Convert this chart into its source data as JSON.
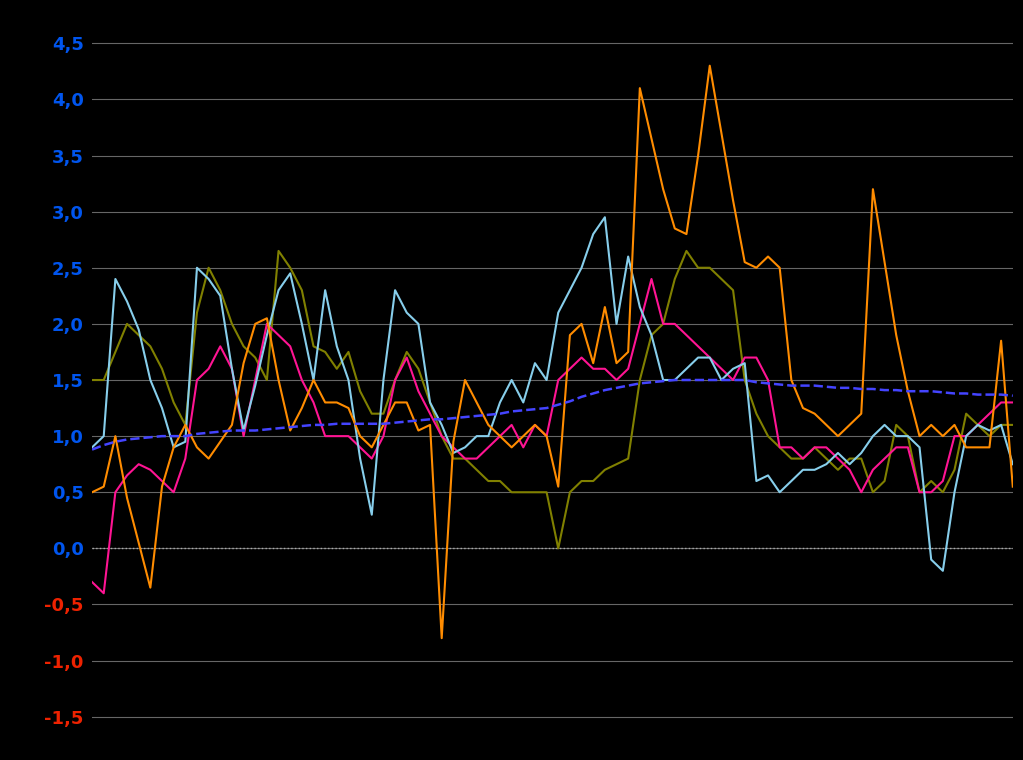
{
  "background_color": "#000000",
  "ylim": [
    -1.75,
    4.75
  ],
  "yticks": [
    4.5,
    4.0,
    3.5,
    3.0,
    2.5,
    2.0,
    1.5,
    1.0,
    0.5,
    0.0,
    -0.5,
    -1.0,
    -1.5
  ],
  "grid_color": "#666666",
  "zero_line_color": "#aaaaaa",
  "line_colors": [
    "#ff8c00",
    "#87ceeb",
    "#808000",
    "#ff1493",
    "#4444ff"
  ],
  "line_styles": [
    "-",
    "-",
    "-",
    "-",
    "--"
  ],
  "line_widths": [
    1.5,
    1.5,
    1.5,
    1.5,
    1.8
  ],
  "n_points": 80,
  "orange_data": [
    0.5,
    0.55,
    1.0,
    0.45,
    0.05,
    -0.35,
    0.55,
    0.9,
    1.1,
    0.9,
    0.8,
    0.95,
    1.1,
    1.65,
    2.0,
    2.05,
    1.5,
    1.05,
    1.25,
    1.5,
    1.3,
    1.3,
    1.25,
    1.0,
    0.9,
    1.1,
    1.3,
    1.3,
    1.05,
    1.1,
    -0.8,
    0.95,
    1.5,
    1.3,
    1.1,
    1.0,
    0.9,
    1.0,
    1.1,
    1.0,
    0.55,
    1.9,
    2.0,
    1.65,
    2.15,
    1.65,
    1.75,
    4.1,
    3.65,
    3.2,
    2.85,
    2.8,
    3.5,
    4.3,
    3.7,
    3.1,
    2.55,
    2.5,
    2.6,
    2.5,
    1.5,
    1.25,
    1.2,
    1.1,
    1.0,
    1.1,
    1.2,
    3.2,
    2.55,
    1.9,
    1.4,
    1.0,
    1.1,
    1.0,
    1.1,
    0.9,
    0.9,
    0.9,
    1.85,
    0.55
  ],
  "cyan_data": [
    0.9,
    1.0,
    2.4,
    2.2,
    1.95,
    1.5,
    1.25,
    0.9,
    0.95,
    2.5,
    2.4,
    2.25,
    1.6,
    1.05,
    1.45,
    1.9,
    2.3,
    2.45,
    2.0,
    1.5,
    2.3,
    1.8,
    1.5,
    0.8,
    0.3,
    1.5,
    2.3,
    2.1,
    2.0,
    1.3,
    1.1,
    0.85,
    0.9,
    1.0,
    1.0,
    1.3,
    1.5,
    1.3,
    1.65,
    1.5,
    2.1,
    2.3,
    2.5,
    2.8,
    2.95,
    2.0,
    2.6,
    2.15,
    1.9,
    1.5,
    1.5,
    1.6,
    1.7,
    1.7,
    1.5,
    1.6,
    1.65,
    0.6,
    0.65,
    0.5,
    0.6,
    0.7,
    0.7,
    0.75,
    0.85,
    0.75,
    0.85,
    1.0,
    1.1,
    1.0,
    1.0,
    0.9,
    -0.1,
    -0.2,
    0.5,
    1.0,
    1.1,
    1.05,
    1.1,
    0.75
  ],
  "olive_data": [
    1.5,
    1.5,
    1.75,
    2.0,
    1.9,
    1.8,
    1.6,
    1.3,
    1.1,
    2.1,
    2.5,
    2.3,
    2.0,
    1.8,
    1.7,
    1.5,
    2.65,
    2.5,
    2.3,
    1.8,
    1.75,
    1.6,
    1.75,
    1.4,
    1.2,
    1.2,
    1.5,
    1.75,
    1.6,
    1.3,
    1.0,
    0.8,
    0.8,
    0.7,
    0.6,
    0.6,
    0.5,
    0.5,
    0.5,
    0.5,
    0.0,
    0.5,
    0.6,
    0.6,
    0.7,
    0.75,
    0.8,
    1.5,
    1.9,
    2.0,
    2.4,
    2.65,
    2.5,
    2.5,
    2.4,
    2.3,
    1.5,
    1.2,
    1.0,
    0.9,
    0.8,
    0.8,
    0.9,
    0.8,
    0.7,
    0.8,
    0.8,
    0.5,
    0.6,
    1.1,
    1.0,
    0.5,
    0.6,
    0.5,
    0.7,
    1.2,
    1.1,
    1.0,
    1.1,
    1.1
  ],
  "pink_data": [
    -0.3,
    -0.4,
    0.5,
    0.65,
    0.75,
    0.7,
    0.6,
    0.5,
    0.8,
    1.5,
    1.6,
    1.8,
    1.6,
    1.0,
    1.5,
    2.0,
    1.9,
    1.8,
    1.5,
    1.3,
    1.0,
    1.0,
    1.0,
    0.9,
    0.8,
    1.0,
    1.5,
    1.7,
    1.4,
    1.2,
    1.0,
    0.9,
    0.8,
    0.8,
    0.9,
    1.0,
    1.1,
    0.9,
    1.1,
    1.0,
    1.5,
    1.6,
    1.7,
    1.6,
    1.6,
    1.5,
    1.6,
    2.0,
    2.4,
    2.0,
    2.0,
    1.9,
    1.8,
    1.7,
    1.6,
    1.5,
    1.7,
    1.7,
    1.5,
    0.9,
    0.9,
    0.8,
    0.9,
    0.9,
    0.8,
    0.7,
    0.5,
    0.7,
    0.8,
    0.9,
    0.9,
    0.5,
    0.5,
    0.6,
    1.0,
    1.0,
    1.1,
    1.2,
    1.3,
    1.3
  ],
  "blue_dashed_data": [
    0.88,
    0.92,
    0.95,
    0.97,
    0.98,
    0.99,
    1.0,
    1.0,
    1.0,
    1.02,
    1.03,
    1.04,
    1.05,
    1.05,
    1.05,
    1.06,
    1.07,
    1.08,
    1.09,
    1.1,
    1.1,
    1.11,
    1.11,
    1.11,
    1.11,
    1.11,
    1.12,
    1.13,
    1.14,
    1.15,
    1.15,
    1.16,
    1.17,
    1.18,
    1.19,
    1.2,
    1.22,
    1.23,
    1.24,
    1.25,
    1.28,
    1.31,
    1.35,
    1.38,
    1.41,
    1.43,
    1.45,
    1.47,
    1.48,
    1.49,
    1.5,
    1.5,
    1.5,
    1.5,
    1.5,
    1.5,
    1.5,
    1.48,
    1.47,
    1.46,
    1.45,
    1.45,
    1.45,
    1.44,
    1.43,
    1.43,
    1.42,
    1.42,
    1.41,
    1.41,
    1.4,
    1.4,
    1.4,
    1.39,
    1.38,
    1.38,
    1.37,
    1.37,
    1.37,
    1.36
  ]
}
